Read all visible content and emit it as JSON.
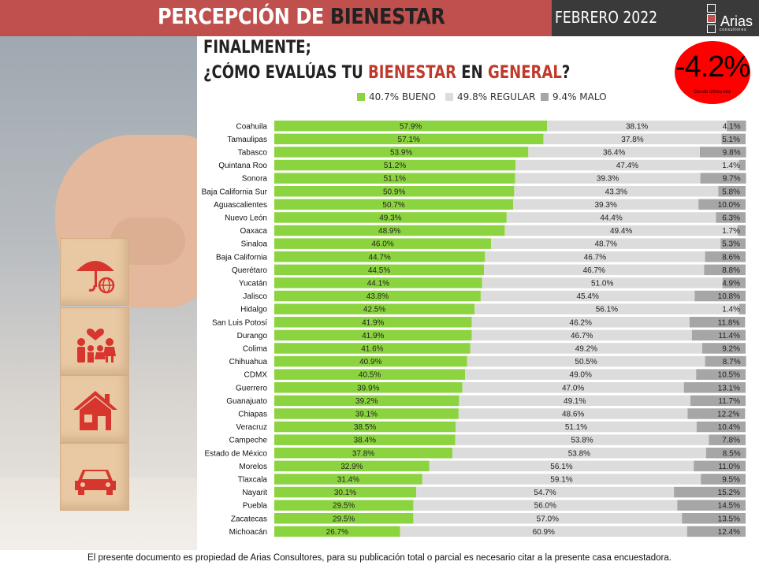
{
  "header": {
    "title_part1": "PERCEPCIÓN DE",
    "title_part2": "BIENESTAR",
    "date": "FEBRERO 2022",
    "logo_text": "Arias",
    "logo_sub": "consultores"
  },
  "question": {
    "line1": "FINALMENTE;",
    "line2_pre": "¿CÓMO EVALÚAS TU ",
    "line2_hl1": "BIENESTAR",
    "line2_mid": " EN ",
    "line2_hl2": "GENERAL",
    "line2_post": "?"
  },
  "legend": {
    "bueno": "40.7% BUENO",
    "regular": "49.8% REGULAR",
    "malo": "9.4% MALO"
  },
  "badge": {
    "value": "-4.2%",
    "subtitle": "Desde última vez"
  },
  "colors": {
    "bueno": "#8cd43f",
    "regular": "#dcdcdc",
    "malo": "#a6a6a6",
    "header_red": "#c0504d",
    "header_dark": "#3a3a3a",
    "badge_red": "#ff0000"
  },
  "icons": [
    "umbrella-globe-icon",
    "family-heart-icon",
    "house-icon",
    "car-icon"
  ],
  "chart_data": {
    "type": "bar",
    "orientation": "horizontal",
    "stacked": true,
    "xlim": [
      0,
      100
    ],
    "categories": [
      "Coahuila",
      "Tamaulipas",
      "Tabasco",
      "Quintana Roo",
      "Sonora",
      "Baja California Sur",
      "Aguascalientes",
      "Nuevo León",
      "Oaxaca",
      "Sinaloa",
      "Baja California",
      "Querétaro",
      "Yucatán",
      "Jalisco",
      "Hidalgo",
      "San Luis Potosí",
      "Durango",
      "Colima",
      "Chihuahua",
      "CDMX",
      "Guerrero",
      "Guanajuato",
      "Chiapas",
      "Veracruz",
      "Campeche",
      "Estado de México",
      "Morelos",
      "Tlaxcala",
      "Nayarit",
      "Puebla",
      "Zacatecas",
      "Michoacán"
    ],
    "series": [
      {
        "name": "BUENO",
        "values": [
          57.9,
          57.1,
          53.9,
          51.2,
          51.1,
          50.9,
          50.7,
          49.3,
          48.9,
          46.0,
          44.7,
          44.5,
          44.1,
          43.8,
          42.5,
          41.9,
          41.9,
          41.6,
          40.9,
          40.5,
          39.9,
          39.2,
          39.1,
          38.5,
          38.4,
          37.8,
          32.9,
          31.4,
          30.1,
          29.5,
          29.5,
          26.7
        ]
      },
      {
        "name": "REGULAR",
        "values": [
          38.1,
          37.8,
          36.4,
          47.4,
          39.3,
          43.3,
          39.3,
          44.4,
          49.4,
          48.7,
          46.7,
          46.7,
          51.0,
          45.4,
          56.1,
          46.2,
          46.7,
          49.2,
          50.5,
          49.0,
          47.0,
          49.1,
          48.6,
          51.1,
          53.8,
          53.8,
          56.1,
          59.1,
          54.7,
          56.0,
          57.0,
          60.9
        ]
      },
      {
        "name": "MALO",
        "values": [
          4.1,
          5.1,
          9.8,
          1.4,
          9.7,
          5.8,
          10.0,
          6.3,
          1.7,
          5.3,
          8.6,
          8.8,
          4.9,
          10.8,
          1.4,
          11.8,
          11.4,
          9.2,
          8.7,
          10.5,
          13.1,
          11.7,
          12.2,
          10.4,
          7.8,
          8.5,
          11.0,
          9.5,
          15.2,
          14.5,
          13.5,
          12.4
        ]
      }
    ]
  },
  "footer": "El presente documento es propiedad de Arias Consultores, para su publicación total o parcial es necesario citar a la presente casa encuestadora."
}
